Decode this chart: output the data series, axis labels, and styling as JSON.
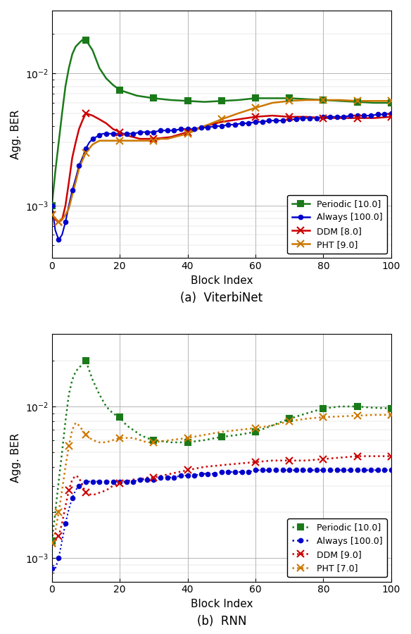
{
  "fig_width": 5.84,
  "fig_height": 9.0,
  "dpi": 100,
  "subplot_a": {
    "title": "(a)  ViterbiNet",
    "xlabel": "Block Index",
    "ylabel": "Agg. BER",
    "xlim": [
      0,
      100
    ],
    "ylim": [
      0.0004,
      0.03
    ],
    "linestyle": "solid",
    "series": [
      {
        "label": "Periodic [10.0]",
        "color": "#1a7a1a",
        "marker": "s",
        "markersize": 6,
        "linewidth": 1.8,
        "x": [
          0,
          1,
          2,
          3,
          4,
          5,
          6,
          7,
          8,
          9,
          10,
          12,
          14,
          16,
          18,
          20,
          25,
          30,
          35,
          40,
          45,
          50,
          55,
          60,
          65,
          70,
          75,
          80,
          85,
          90,
          95,
          100
        ],
        "y": [
          0.001,
          0.0018,
          0.003,
          0.005,
          0.008,
          0.011,
          0.014,
          0.016,
          0.017,
          0.018,
          0.018,
          0.015,
          0.011,
          0.0092,
          0.0082,
          0.0075,
          0.0068,
          0.0065,
          0.0063,
          0.0062,
          0.0061,
          0.0062,
          0.0063,
          0.0065,
          0.0065,
          0.0065,
          0.0064,
          0.0063,
          0.0062,
          0.0061,
          0.006,
          0.006
        ],
        "marker_x": [
          0,
          10,
          20,
          30,
          40,
          50,
          60,
          70,
          80,
          90,
          100
        ]
      },
      {
        "label": "Always [100.0]",
        "color": "#0000cc",
        "marker": "o",
        "markersize": 4,
        "linewidth": 1.5,
        "x": [
          0,
          1,
          2,
          3,
          4,
          5,
          6,
          7,
          8,
          9,
          10,
          11,
          12,
          13,
          14,
          15,
          16,
          17,
          18,
          19,
          20,
          22,
          24,
          26,
          28,
          30,
          32,
          34,
          36,
          38,
          40,
          42,
          44,
          46,
          48,
          50,
          52,
          54,
          56,
          58,
          60,
          62,
          64,
          66,
          68,
          70,
          72,
          74,
          76,
          78,
          80,
          82,
          84,
          86,
          88,
          90,
          92,
          94,
          96,
          98,
          100
        ],
        "y": [
          0.001,
          0.00065,
          0.00055,
          0.0006,
          0.00075,
          0.001,
          0.0013,
          0.0016,
          0.002,
          0.0023,
          0.0027,
          0.003,
          0.0032,
          0.0033,
          0.0034,
          0.0035,
          0.0035,
          0.0035,
          0.0035,
          0.0035,
          0.0035,
          0.0035,
          0.0035,
          0.0036,
          0.0036,
          0.0036,
          0.0037,
          0.0037,
          0.0037,
          0.0038,
          0.0038,
          0.0038,
          0.0039,
          0.0039,
          0.004,
          0.004,
          0.0041,
          0.0041,
          0.0042,
          0.0042,
          0.0043,
          0.0043,
          0.0044,
          0.0044,
          0.0044,
          0.0045,
          0.0045,
          0.0046,
          0.0046,
          0.0046,
          0.0047,
          0.0047,
          0.0047,
          0.0047,
          0.0048,
          0.0048,
          0.0048,
          0.0048,
          0.0049,
          0.0049,
          0.005
        ],
        "marker_x": [
          0,
          2,
          4,
          6,
          8,
          10,
          12,
          14,
          16,
          18,
          20,
          22,
          24,
          26,
          28,
          30,
          32,
          34,
          36,
          38,
          40,
          42,
          44,
          46,
          48,
          50,
          52,
          54,
          56,
          58,
          60,
          62,
          64,
          66,
          68,
          70,
          72,
          74,
          76,
          78,
          80,
          82,
          84,
          86,
          88,
          90,
          92,
          94,
          96,
          98,
          100
        ]
      },
      {
        "label": "DDM [8.0]",
        "color": "#cc0000",
        "marker": "x",
        "markersize": 7,
        "linewidth": 1.8,
        "x": [
          0,
          1,
          2,
          3,
          4,
          5,
          6,
          7,
          8,
          9,
          10,
          12,
          14,
          16,
          18,
          20,
          22,
          24,
          26,
          28,
          30,
          35,
          40,
          45,
          50,
          55,
          60,
          65,
          70,
          75,
          80,
          85,
          90,
          95,
          100
        ],
        "y": [
          0.00085,
          0.00078,
          0.00075,
          0.00078,
          0.001,
          0.0015,
          0.0023,
          0.003,
          0.0038,
          0.0044,
          0.005,
          0.0048,
          0.0045,
          0.0042,
          0.0038,
          0.0036,
          0.0034,
          0.0033,
          0.0032,
          0.0032,
          0.0032,
          0.0033,
          0.0036,
          0.004,
          0.0043,
          0.0045,
          0.0047,
          0.0048,
          0.0047,
          0.0047,
          0.0046,
          0.0046,
          0.0046,
          0.0046,
          0.0047
        ],
        "marker_x": [
          0,
          2,
          10,
          20,
          30,
          40,
          60,
          70,
          80,
          90,
          100
        ]
      },
      {
        "label": "PHT [9.0]",
        "color": "#cc7700",
        "marker": "x",
        "markersize": 7,
        "linewidth": 1.8,
        "x": [
          0,
          1,
          2,
          3,
          4,
          5,
          6,
          7,
          8,
          9,
          10,
          11,
          12,
          13,
          14,
          15,
          16,
          17,
          18,
          19,
          20,
          22,
          24,
          26,
          28,
          30,
          32,
          34,
          36,
          38,
          40,
          45,
          50,
          55,
          60,
          65,
          70,
          75,
          80,
          85,
          90,
          95,
          100
        ],
        "y": [
          0.00085,
          0.0008,
          0.00075,
          0.00078,
          0.00085,
          0.00095,
          0.0012,
          0.0015,
          0.0019,
          0.0022,
          0.0025,
          0.0027,
          0.0029,
          0.003,
          0.0031,
          0.0031,
          0.0031,
          0.0031,
          0.0031,
          0.0031,
          0.0031,
          0.0031,
          0.0031,
          0.0031,
          0.0031,
          0.0031,
          0.0032,
          0.0032,
          0.0033,
          0.0034,
          0.0035,
          0.004,
          0.0045,
          0.005,
          0.0055,
          0.006,
          0.0062,
          0.0063,
          0.0063,
          0.0063,
          0.0062,
          0.0062,
          0.0062
        ],
        "marker_x": [
          0,
          2,
          10,
          20,
          30,
          40,
          50,
          60,
          70,
          80,
          90,
          100
        ]
      }
    ]
  },
  "subplot_b": {
    "title": "(b)  RNN",
    "xlabel": "Block Index",
    "ylabel": "Agg. BER",
    "xlim": [
      0,
      100
    ],
    "ylim": [
      0.0007,
      0.03
    ],
    "linestyle": "dotted",
    "series": [
      {
        "label": "Periodic [10.0]",
        "color": "#1a7a1a",
        "marker": "s",
        "markersize": 6,
        "linewidth": 1.8,
        "x": [
          0,
          1,
          2,
          3,
          4,
          5,
          6,
          7,
          8,
          9,
          10,
          12,
          14,
          16,
          18,
          20,
          22,
          24,
          26,
          28,
          30,
          35,
          40,
          45,
          50,
          55,
          60,
          65,
          70,
          75,
          80,
          85,
          90,
          95,
          100
        ],
        "y": [
          0.0013,
          0.002,
          0.0032,
          0.005,
          0.008,
          0.012,
          0.015,
          0.017,
          0.018,
          0.019,
          0.02,
          0.015,
          0.012,
          0.01,
          0.009,
          0.0085,
          0.0075,
          0.007,
          0.0065,
          0.0062,
          0.006,
          0.0058,
          0.0058,
          0.006,
          0.0063,
          0.0065,
          0.0068,
          0.0075,
          0.0083,
          0.009,
          0.0097,
          0.01,
          0.01,
          0.0098,
          0.0097
        ],
        "marker_x": [
          0,
          10,
          20,
          30,
          40,
          50,
          60,
          70,
          80,
          90,
          100
        ]
      },
      {
        "label": "Always [100.0]",
        "color": "#0000cc",
        "marker": "o",
        "markersize": 4,
        "linewidth": 1.5,
        "x": [
          0,
          1,
          2,
          3,
          4,
          5,
          6,
          7,
          8,
          9,
          10,
          11,
          12,
          13,
          14,
          15,
          16,
          17,
          18,
          19,
          20,
          22,
          24,
          26,
          28,
          30,
          32,
          34,
          36,
          38,
          40,
          42,
          44,
          46,
          48,
          50,
          52,
          54,
          56,
          58,
          60,
          62,
          64,
          66,
          68,
          70,
          72,
          74,
          76,
          78,
          80,
          82,
          84,
          86,
          88,
          90,
          92,
          94,
          96,
          98,
          100
        ],
        "y": [
          0.00085,
          0.00085,
          0.001,
          0.0013,
          0.0017,
          0.0021,
          0.0025,
          0.0028,
          0.003,
          0.0031,
          0.0032,
          0.0032,
          0.0032,
          0.0032,
          0.0032,
          0.0032,
          0.0032,
          0.0032,
          0.0032,
          0.0032,
          0.0032,
          0.0032,
          0.0032,
          0.0033,
          0.0033,
          0.0033,
          0.0034,
          0.0034,
          0.0034,
          0.0035,
          0.0035,
          0.0035,
          0.0036,
          0.0036,
          0.0036,
          0.0037,
          0.0037,
          0.0037,
          0.0037,
          0.0037,
          0.0038,
          0.0038,
          0.0038,
          0.0038,
          0.0038,
          0.0038,
          0.0038,
          0.0038,
          0.0038,
          0.0038,
          0.0038,
          0.0038,
          0.0038,
          0.0038,
          0.0038,
          0.0038,
          0.0038,
          0.0038,
          0.0038,
          0.0038,
          0.0038
        ],
        "marker_x": [
          0,
          2,
          4,
          6,
          8,
          10,
          12,
          14,
          16,
          18,
          20,
          22,
          24,
          26,
          28,
          30,
          32,
          34,
          36,
          38,
          40,
          42,
          44,
          46,
          48,
          50,
          52,
          54,
          56,
          58,
          60,
          62,
          64,
          66,
          68,
          70,
          72,
          74,
          76,
          78,
          80,
          82,
          84,
          86,
          88,
          90,
          92,
          94,
          96,
          98,
          100
        ]
      },
      {
        "label": "DDM [9.0]",
        "color": "#cc0000",
        "marker": "x",
        "markersize": 7,
        "linewidth": 1.8,
        "x": [
          0,
          1,
          2,
          3,
          4,
          5,
          6,
          7,
          8,
          9,
          10,
          12,
          14,
          16,
          18,
          20,
          22,
          24,
          26,
          28,
          30,
          35,
          40,
          45,
          50,
          55,
          60,
          65,
          70,
          75,
          80,
          85,
          90,
          95,
          100
        ],
        "y": [
          0.00125,
          0.0013,
          0.0014,
          0.0017,
          0.0022,
          0.0028,
          0.0033,
          0.0035,
          0.0034,
          0.003,
          0.0027,
          0.0026,
          0.0027,
          0.0028,
          0.003,
          0.0031,
          0.0032,
          0.0033,
          0.0033,
          0.0034,
          0.0034,
          0.0036,
          0.0038,
          0.004,
          0.0041,
          0.0042,
          0.0043,
          0.0044,
          0.0044,
          0.0044,
          0.0045,
          0.0046,
          0.0047,
          0.0047,
          0.0047
        ],
        "marker_x": [
          0,
          2,
          5,
          10,
          20,
          30,
          40,
          60,
          70,
          80,
          90,
          100
        ]
      },
      {
        "label": "PHT [7.0]",
        "color": "#cc7700",
        "marker": "x",
        "markersize": 7,
        "linewidth": 1.8,
        "x": [
          0,
          1,
          2,
          3,
          4,
          5,
          6,
          7,
          8,
          9,
          10,
          12,
          14,
          16,
          18,
          20,
          22,
          24,
          26,
          28,
          30,
          35,
          40,
          45,
          50,
          55,
          60,
          65,
          70,
          75,
          80,
          85,
          90,
          95,
          100
        ],
        "y": [
          0.00125,
          0.0015,
          0.002,
          0.0028,
          0.004,
          0.0055,
          0.007,
          0.0078,
          0.0075,
          0.007,
          0.0065,
          0.006,
          0.0058,
          0.0058,
          0.006,
          0.0062,
          0.0062,
          0.0062,
          0.006,
          0.0058,
          0.0058,
          0.006,
          0.0062,
          0.0065,
          0.0068,
          0.007,
          0.0072,
          0.0075,
          0.008,
          0.0083,
          0.0085,
          0.0086,
          0.0087,
          0.0088,
          0.0088
        ],
        "marker_x": [
          0,
          2,
          5,
          10,
          20,
          30,
          40,
          60,
          70,
          80,
          90,
          100
        ]
      }
    ]
  }
}
